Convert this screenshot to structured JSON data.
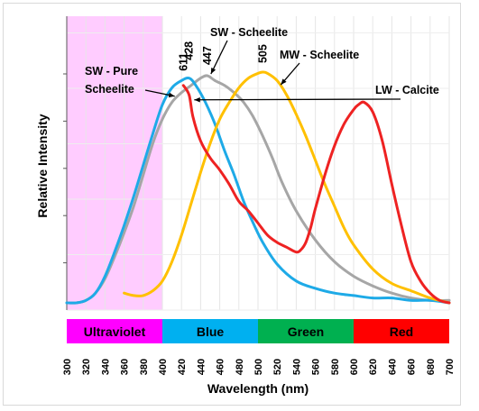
{
  "chart_data": {
    "type": "line",
    "xlabel": "Wavelength (nm)",
    "ylabel": "Relative Intensity",
    "xlim": [
      300,
      700
    ],
    "xticks": [
      300,
      320,
      340,
      360,
      380,
      400,
      420,
      440,
      460,
      480,
      500,
      520,
      540,
      560,
      580,
      600,
      620,
      640,
      660,
      680,
      700
    ],
    "ylim": [
      0,
      1
    ],
    "y_tick_labels_shown": false,
    "grid": "vertical gridlines every 20 nm, light horizontal gridlines",
    "uv_region": {
      "from": 300,
      "to": 400,
      "color": "#ffccff"
    },
    "bands": [
      {
        "label": "Ultraviolet",
        "from": 300,
        "to": 400,
        "color": "#ff00ff"
      },
      {
        "label": "Blue",
        "from": 400,
        "to": 500,
        "color": "#00b0f0"
      },
      {
        "label": "Green",
        "from": 500,
        "to": 600,
        "color": "#00b050"
      },
      {
        "label": "Red",
        "from": 600,
        "to": 700,
        "color": "#ff0000"
      }
    ],
    "series": [
      {
        "name": "SW - Pure Scheelite",
        "color": "#1eaae7",
        "peak_label": "428",
        "x": [
          300,
          310,
          320,
          330,
          340,
          350,
          360,
          370,
          380,
          390,
          400,
          410,
          420,
          428,
          435,
          445,
          455,
          465,
          475,
          485,
          495,
          505,
          520,
          540,
          560,
          580,
          600,
          620,
          640,
          660,
          680,
          700
        ],
        "y": [
          0.03,
          0.03,
          0.04,
          0.07,
          0.14,
          0.24,
          0.35,
          0.47,
          0.6,
          0.73,
          0.85,
          0.92,
          0.95,
          0.96,
          0.93,
          0.86,
          0.77,
          0.66,
          0.56,
          0.45,
          0.36,
          0.28,
          0.19,
          0.12,
          0.09,
          0.07,
          0.06,
          0.05,
          0.05,
          0.04,
          0.04,
          0.03
        ]
      },
      {
        "name": "SW - Scheelite",
        "color": "#a6a6a6",
        "peak_label": "447",
        "x": [
          300,
          310,
          320,
          330,
          340,
          350,
          360,
          370,
          380,
          390,
          400,
          410,
          420,
          430,
          440,
          447,
          455,
          465,
          475,
          485,
          495,
          505,
          515,
          525,
          540,
          560,
          580,
          600,
          620,
          640,
          660,
          680,
          700
        ],
        "y": [
          0.03,
          0.03,
          0.04,
          0.07,
          0.13,
          0.22,
          0.32,
          0.43,
          0.56,
          0.69,
          0.79,
          0.86,
          0.9,
          0.93,
          0.96,
          0.97,
          0.95,
          0.93,
          0.9,
          0.86,
          0.8,
          0.72,
          0.63,
          0.53,
          0.41,
          0.29,
          0.2,
          0.14,
          0.1,
          0.07,
          0.05,
          0.04,
          0.04
        ]
      },
      {
        "name": "MW - Scheelite",
        "color": "#ffc000",
        "peak_label": "505",
        "x": [
          360,
          370,
          380,
          390,
          400,
          410,
          420,
          430,
          440,
          450,
          460,
          470,
          480,
          490,
          500,
          505,
          510,
          520,
          530,
          540,
          550,
          560,
          570,
          580,
          590,
          600,
          620,
          640,
          660,
          680,
          700
        ],
        "y": [
          0.07,
          0.06,
          0.06,
          0.08,
          0.12,
          0.2,
          0.31,
          0.44,
          0.57,
          0.69,
          0.79,
          0.86,
          0.92,
          0.96,
          0.98,
          0.985,
          0.98,
          0.95,
          0.89,
          0.81,
          0.72,
          0.62,
          0.52,
          0.43,
          0.34,
          0.27,
          0.17,
          0.11,
          0.08,
          0.05,
          0.03
        ]
      },
      {
        "name": "LW - Calcite",
        "color": "#ee2222",
        "peak_label": "611",
        "x": [
          422,
          428,
          432,
          440,
          450,
          460,
          470,
          480,
          490,
          500,
          510,
          520,
          530,
          540,
          545,
          550,
          555,
          560,
          570,
          580,
          590,
          600,
          605,
          611,
          620,
          630,
          640,
          650,
          660,
          670,
          680,
          690,
          700
        ],
        "y": [
          0.93,
          0.89,
          0.8,
          0.7,
          0.63,
          0.58,
          0.52,
          0.45,
          0.41,
          0.36,
          0.31,
          0.28,
          0.26,
          0.24,
          0.25,
          0.28,
          0.34,
          0.42,
          0.56,
          0.68,
          0.77,
          0.83,
          0.85,
          0.86,
          0.82,
          0.7,
          0.52,
          0.35,
          0.2,
          0.12,
          0.07,
          0.04,
          0.03
        ]
      }
    ],
    "annotations": [
      {
        "text_lines": [
          "SW - Pure",
          "Scheelite"
        ],
        "series": "SW - Pure Scheelite"
      },
      {
        "text_lines": [
          "SW - Scheelite"
        ],
        "series": "SW - Scheelite"
      },
      {
        "text_lines": [
          "MW - Scheelite"
        ],
        "series": "MW - Scheelite"
      },
      {
        "text_lines": [
          "LW - Calcite"
        ],
        "series": "LW - Calcite"
      }
    ]
  }
}
